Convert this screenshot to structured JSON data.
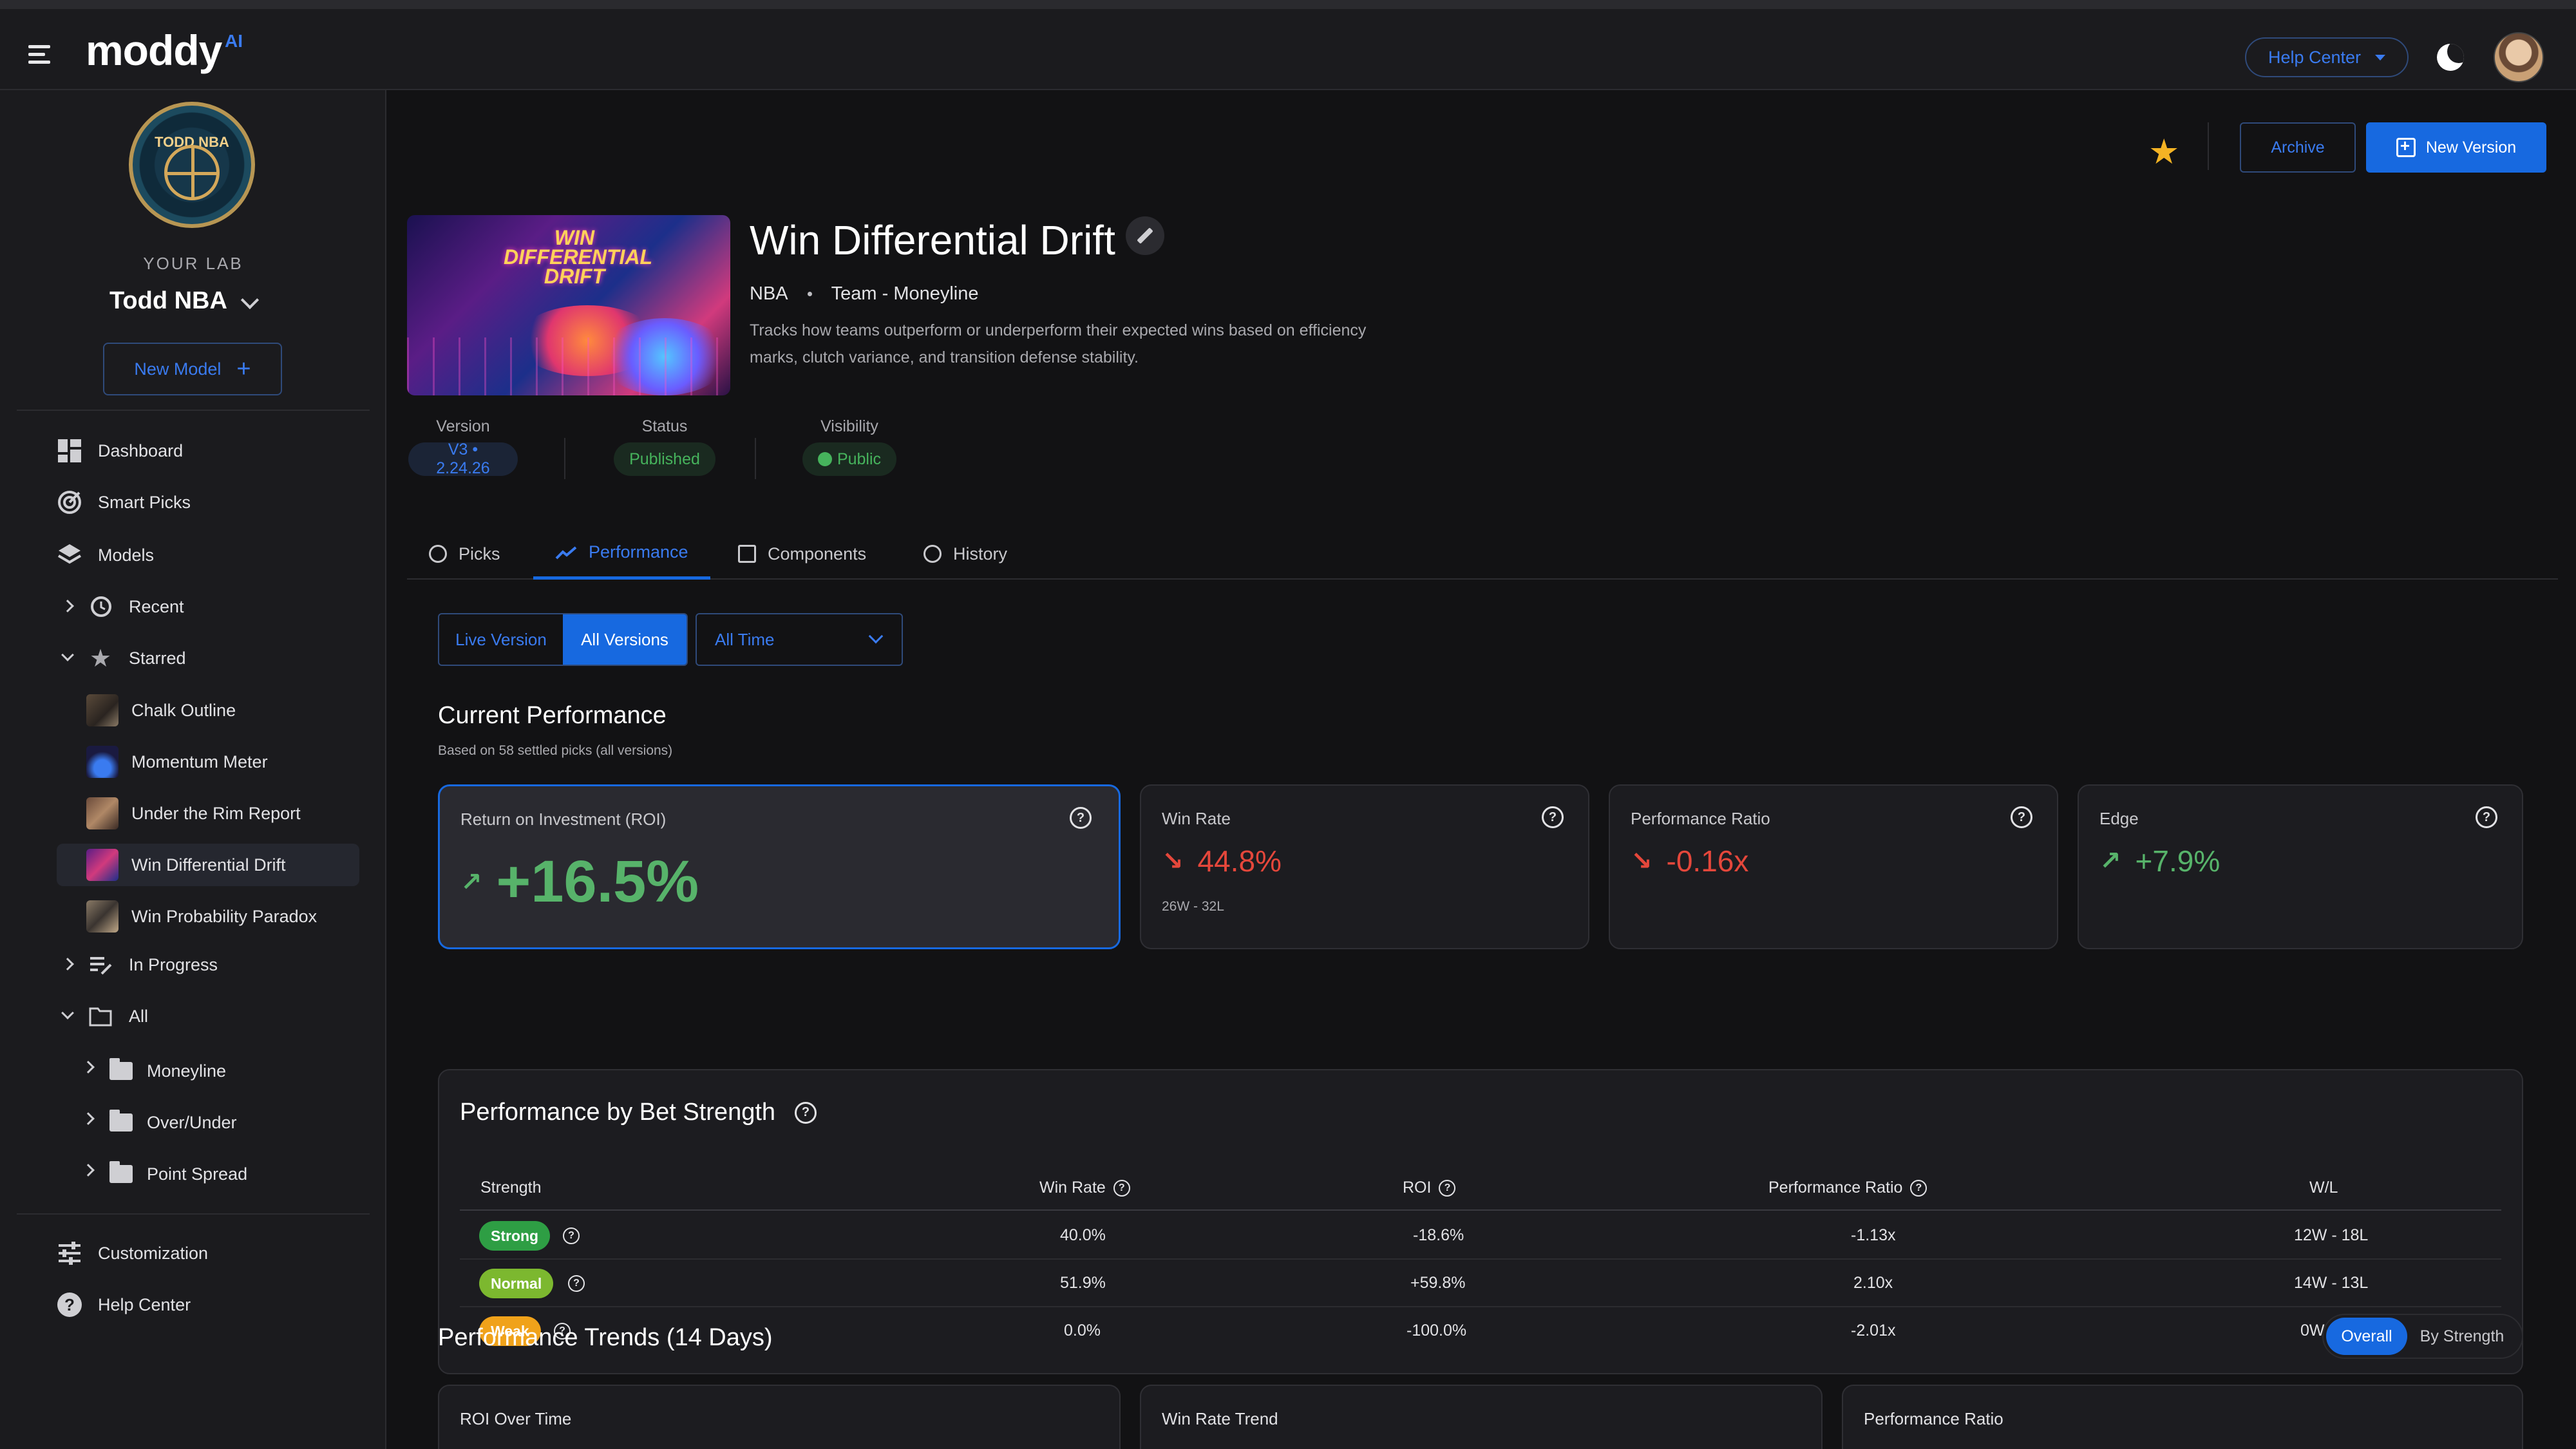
{
  "app": {
    "logo": "moddy",
    "logo_suffix": "AI",
    "help_center": "Help Center"
  },
  "sidebar": {
    "badge_text": "TODD NBA",
    "your_lab": "YOUR LAB",
    "lab_name": "Todd NBA",
    "new_model": "New Model",
    "nav": {
      "dashboard": "Dashboard",
      "smart_picks": "Smart Picks",
      "models": "Models",
      "recent": "Recent",
      "starred": "Starred",
      "in_progress": "In Progress",
      "all": "All",
      "customization": "Customization",
      "help_center": "Help Center"
    },
    "starred_items": [
      "Chalk Outline",
      "Momentum Meter",
      "Under the Rim Report",
      "Win Differential Drift",
      "Win Probability Paradox"
    ],
    "folders": [
      "Moneyline",
      "Over/Under",
      "Point Spread"
    ]
  },
  "header": {
    "archive": "Archive",
    "new_version": "New Version"
  },
  "model": {
    "image_text": "WIN DIFFERENTIAL DRIFT",
    "title": "Win Differential Drift",
    "league": "NBA",
    "market": "Team - Moneyline",
    "description": "Tracks how teams outperform or underperform their expected wins based on efficiency marks, clutch variance, and transition defense stability.",
    "version_label": "Version",
    "version_value": "V3 • 2.24.26",
    "status_label": "Status",
    "status_value": "Published",
    "visibility_label": "Visibility",
    "visibility_value": "Public"
  },
  "tabs": [
    "Picks",
    "Performance",
    "Components",
    "History"
  ],
  "filters": {
    "live_version": "Live Version",
    "all_versions": "All Versions",
    "time_range": "All Time"
  },
  "current": {
    "title": "Current Performance",
    "subtitle": "Based on 58 settled picks (all versions)",
    "cards": [
      {
        "label": "Return on Investment (ROI)",
        "value": "+16.5%",
        "sub": "",
        "trend": "up"
      },
      {
        "label": "Win Rate",
        "value": "44.8%",
        "sub": "26W - 32L",
        "trend": "down"
      },
      {
        "label": "Performance Ratio",
        "value": "-0.16x",
        "sub": "",
        "trend": "down"
      },
      {
        "label": "Edge",
        "value": "+7.9%",
        "sub": "",
        "trend": "up"
      }
    ]
  },
  "strength": {
    "title": "Performance by Bet Strength",
    "columns": [
      "Strength",
      "Win Rate",
      "ROI",
      "Performance Ratio",
      "W/L"
    ],
    "rows": [
      {
        "badge": "Strong",
        "color": "#2e9e44",
        "win_rate": "40.0%",
        "roi": "-18.6%",
        "ratio": "-1.13x",
        "wl": "12W - 18L"
      },
      {
        "badge": "Normal",
        "color": "#7cb82f",
        "win_rate": "51.9%",
        "roi": "+59.8%",
        "ratio": "2.10x",
        "wl": "14W - 13L"
      },
      {
        "badge": "Weak",
        "color": "#f0a21a",
        "win_rate": "0.0%",
        "roi": "-100.0%",
        "ratio": "-2.01x",
        "wl": "0W - 1L"
      }
    ]
  },
  "trends": {
    "title": "Performance Trends (14 Days)",
    "overall": "Overall",
    "by_strength": "By Strength",
    "charts": [
      "ROI Over Time",
      "Win Rate Trend",
      "Performance Ratio"
    ]
  },
  "colors": {
    "accent": "#1769e0",
    "positive": "#57b36a",
    "negative": "#e5473b",
    "star": "#f4b324"
  }
}
